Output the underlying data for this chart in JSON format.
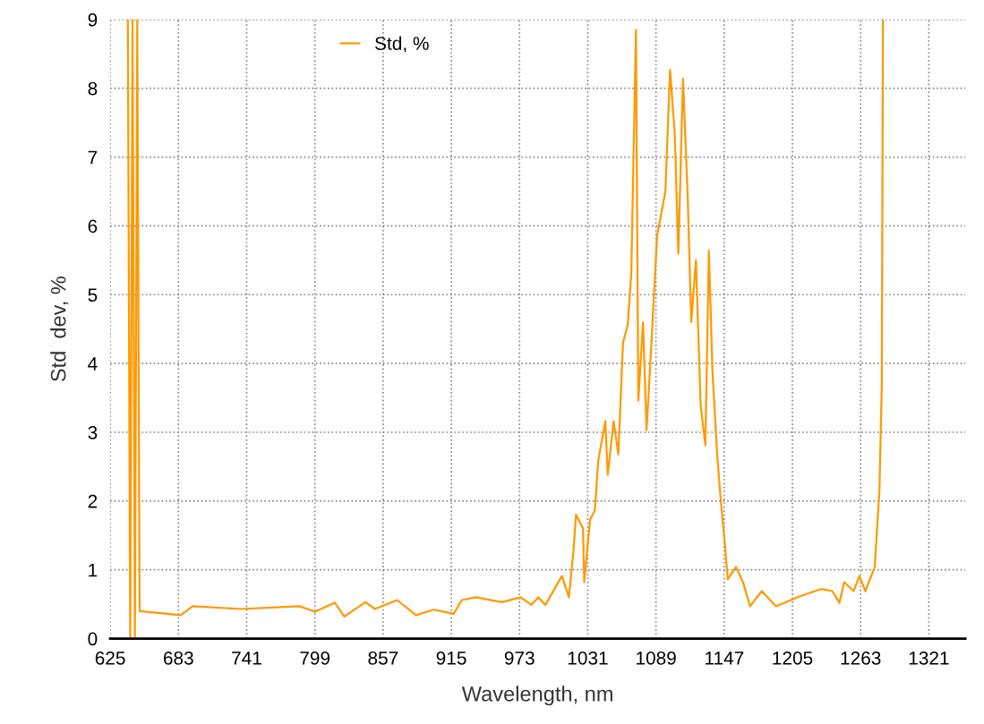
{
  "chart_data": {
    "type": "line",
    "xlabel": "Wavelength, nm",
    "ylabel": "Std  dev, %",
    "xlim": [
      625,
      1352
    ],
    "xticks": [
      625,
      683,
      741,
      799,
      857,
      915,
      973,
      1031,
      1089,
      1147,
      1205,
      1263,
      1321
    ],
    "ylim": [
      0,
      9
    ],
    "yticks": [
      0,
      1,
      2,
      3,
      4,
      5,
      6,
      7,
      8,
      9
    ],
    "grid": true,
    "legend": "top left",
    "line_style": "solid",
    "marker": "none",
    "series": [
      {
        "name": "Std, %",
        "color": "#ff9900",
        "x": [
          640,
          642,
          644,
          646,
          648,
          650,
          685,
          695,
          736,
          786,
          799,
          816,
          824,
          842,
          850,
          869,
          885,
          900,
          917,
          924,
          936,
          958,
          974,
          983,
          989,
          995,
          1009,
          1015,
          1019,
          1021,
          1027,
          1028,
          1033,
          1037,
          1040,
          1046,
          1048,
          1053,
          1057,
          1061,
          1065,
          1068,
          1072,
          1074,
          1078,
          1081,
          1085,
          1090,
          1097,
          1101,
          1105,
          1108,
          1110,
          1112,
          1116,
          1119,
          1123,
          1127,
          1131,
          1134,
          1137,
          1141,
          1144,
          1148,
          1150,
          1157,
          1163,
          1169,
          1179,
          1191,
          1209,
          1229,
          1239,
          1245,
          1249,
          1257,
          1262,
          1267,
          1275,
          1279,
          1281,
          1282
        ],
        "values": [
          9,
          0,
          9,
          0,
          9,
          0.4,
          0.34,
          0.47,
          0.43,
          0.47,
          0.39,
          0.52,
          0.32,
          0.53,
          0.43,
          0.56,
          0.34,
          0.42,
          0.36,
          0.56,
          0.6,
          0.53,
          0.6,
          0.49,
          0.6,
          0.49,
          0.91,
          0.6,
          1.3,
          1.8,
          1.6,
          0.82,
          1.73,
          1.86,
          2.6,
          3.16,
          2.38,
          3.16,
          2.68,
          4.3,
          4.56,
          5.3,
          8.85,
          3.46,
          4.6,
          3.03,
          4.25,
          5.86,
          6.5,
          8.27,
          7.33,
          5.6,
          6.85,
          8.14,
          6.42,
          4.6,
          5.5,
          3.39,
          2.81,
          5.64,
          3.9,
          2.68,
          2.03,
          1.3,
          0.86,
          1.04,
          0.82,
          0.47,
          0.69,
          0.47,
          0.6,
          0.72,
          0.69,
          0.52,
          0.82,
          0.69,
          0.91,
          0.69,
          1.04,
          2.16,
          3.68,
          9
        ]
      }
    ]
  }
}
